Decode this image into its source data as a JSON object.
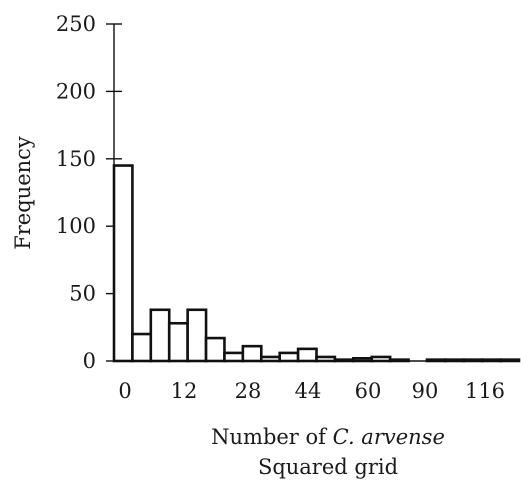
{
  "chart_data": {
    "type": "bar",
    "title": "",
    "ylabel": "Frequency",
    "xlabel_prefix": "Number of ",
    "xlabel_italic": "C. arvense",
    "subtitle": "Squared grid",
    "ylim": [
      0,
      250
    ],
    "yticks": [
      0,
      50,
      100,
      150,
      200,
      250
    ],
    "xtick_labels": [
      "0",
      "12",
      "28",
      "44",
      "60",
      "90",
      "116"
    ],
    "grid": false,
    "bins": 22,
    "values": [
      145,
      20,
      38,
      28,
      38,
      17,
      6,
      11,
      3,
      6,
      9,
      3,
      1,
      2,
      3,
      1,
      0,
      1,
      1,
      1,
      1,
      1
    ],
    "colors": {
      "bar_fill": "#ffffff",
      "bar_stroke": "#111111",
      "text": "#1a1a1a"
    }
  }
}
